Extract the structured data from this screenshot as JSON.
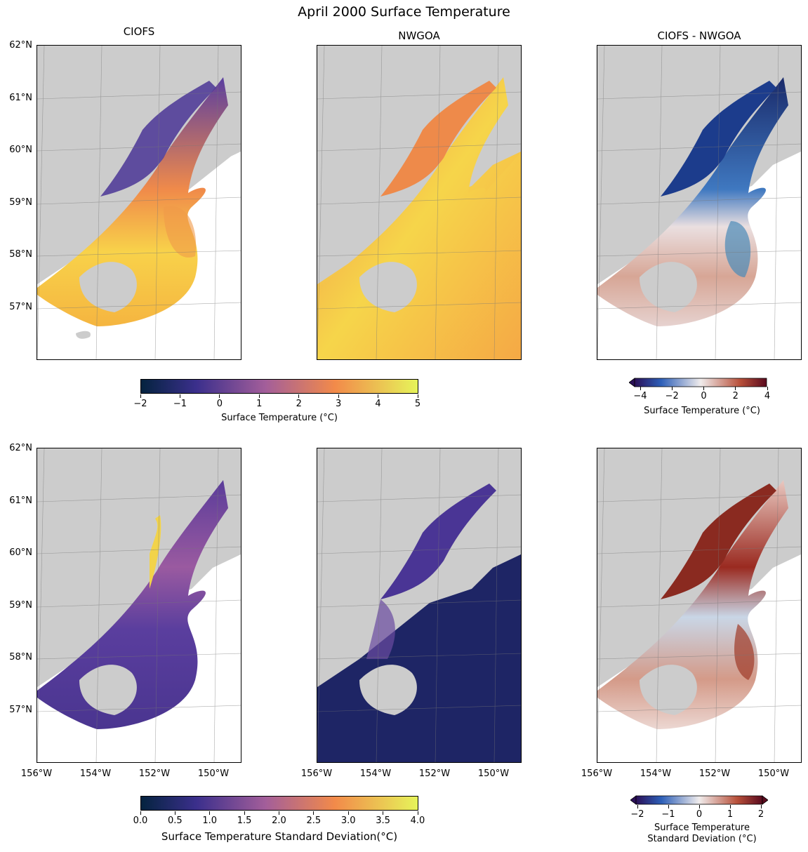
{
  "figure_title": "April 2000 Surface Temperature",
  "columns": [
    "CIOFS",
    "NWGOA",
    "CIOFS - NWGOA"
  ],
  "lat_labels": [
    "62°N",
    "61°N",
    "60°N",
    "59°N",
    "58°N",
    "57°N"
  ],
  "lon_labels": [
    "156°W",
    "154°W",
    "152°W",
    "150°W"
  ],
  "colorbars": {
    "temp": {
      "ticks": [
        "−2",
        "−1",
        "0",
        "1",
        "2",
        "3",
        "4",
        "5"
      ],
      "label": "Surface Temperature (°C)"
    },
    "temp_diff": {
      "ticks": [
        "−4",
        "−2",
        "0",
        "2",
        "4"
      ],
      "label": "Surface Temperature (°C)"
    },
    "std": {
      "ticks": [
        "0.0",
        "0.5",
        "1.0",
        "1.5",
        "2.0",
        "2.5",
        "3.0",
        "3.5",
        "4.0"
      ],
      "label": "Surface Temperature Standard Deviation(°C)"
    },
    "std_diff": {
      "ticks": [
        "−2",
        "−1",
        "0",
        "1",
        "2"
      ],
      "label_line1": "Surface Temperature",
      "label_line2": "Standard Deviation (°C)"
    }
  },
  "colors": {
    "land": "#cccccc",
    "thermal_low": "#04233f",
    "thermal_mid": "#a35e9a",
    "thermal_high": "#e6f45a",
    "balance_low": "#2b1058",
    "balance_mid": "#f0ecec",
    "balance_high": "#5a0a1e"
  }
}
